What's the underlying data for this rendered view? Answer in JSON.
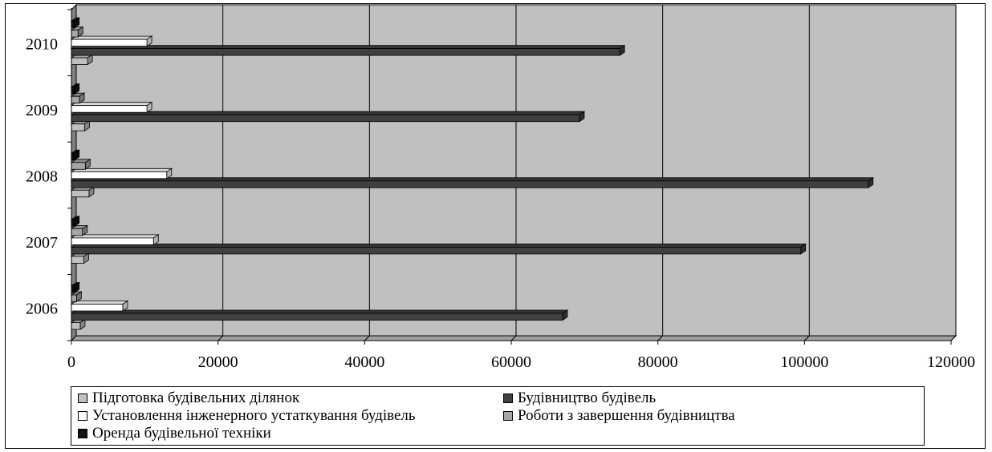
{
  "chart_data": {
    "type": "bar",
    "orientation": "horizontal",
    "style": "3d",
    "categories": [
      "2006",
      "2007",
      "2008",
      "2009",
      "2010"
    ],
    "series": [
      {
        "name": "Підготовка будівельних ділянок",
        "color": "#c0c0c0",
        "values": [
          1200,
          1700,
          2400,
          1800,
          2200
        ]
      },
      {
        "name": "Будівництво будівель",
        "color": "#404040",
        "values": [
          67000,
          99500,
          108700,
          69300,
          74800
        ]
      },
      {
        "name": "Установлення інженерного устаткування будівель",
        "color": "#ffffff",
        "values": [
          7000,
          11200,
          13000,
          10300,
          10300
        ]
      },
      {
        "name": "Роботи з завершення будівництва",
        "color": "#a6a6a6",
        "values": [
          700,
          1500,
          1900,
          1100,
          900
        ]
      },
      {
        "name": "Оренда будівельної техніки",
        "color": "#111111",
        "values": [
          400,
          400,
          400,
          400,
          400
        ]
      }
    ],
    "xlim": [
      0,
      120000
    ],
    "xticks": [
      "0",
      "20000",
      "40000",
      "60000",
      "80000",
      "100000",
      "120000"
    ],
    "grid": true,
    "legend": "bottom",
    "title": "",
    "xlabel": "",
    "ylabel": ""
  }
}
